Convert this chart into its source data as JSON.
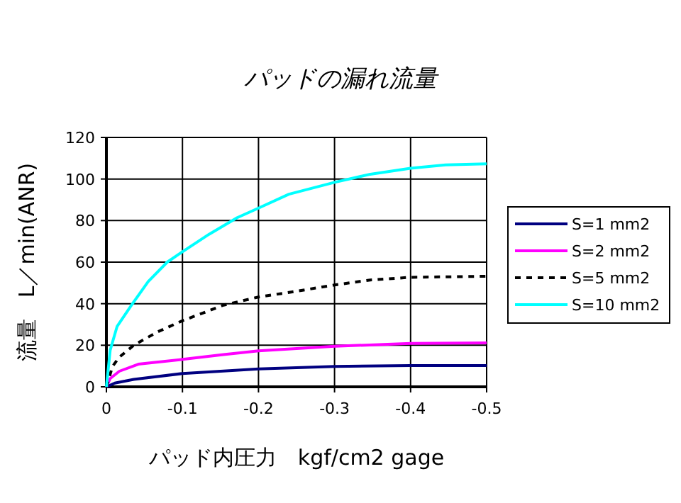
{
  "chart_data": {
    "type": "line",
    "title": "パッドの漏れ流量",
    "xlabel": "パッド内圧力　kgf/cm2 gage",
    "ylabel": "流量　L／min(ANR)",
    "xlim": [
      0,
      -0.5
    ],
    "xticks": [
      0,
      -0.1,
      -0.2,
      -0.3,
      -0.4,
      -0.5
    ],
    "ylim": [
      0,
      120
    ],
    "yticks": [
      0,
      20,
      40,
      60,
      80,
      100,
      120
    ],
    "grid": true,
    "legend": "right",
    "marker": "none",
    "series": [
      {
        "name": "S=1 mm2",
        "color": "#000080",
        "line_style": "solid",
        "x": [
          0,
          -0.011,
          -0.036,
          -0.1,
          -0.2,
          -0.3,
          -0.4,
          -0.5
        ],
        "values": [
          0,
          1.8,
          3.6,
          6.4,
          8.6,
          9.8,
          10.2,
          10.2
        ]
      },
      {
        "name": "S=2 mm2",
        "color": "#ff00ff",
        "line_style": "solid",
        "x": [
          0,
          -0.005,
          -0.017,
          -0.042,
          -0.1,
          -0.154,
          -0.2,
          -0.3,
          -0.4,
          -0.5
        ],
        "values": [
          0,
          4,
          7.5,
          10.9,
          13.2,
          15.5,
          17.3,
          19.5,
          20.9,
          21.1
        ]
      },
      {
        "name": "S=5 mm2",
        "color": "#000000",
        "line_style": "dashed",
        "x": [
          0,
          -0.008,
          -0.017,
          -0.036,
          -0.067,
          -0.1,
          -0.154,
          -0.2,
          -0.25,
          -0.3,
          -0.347,
          -0.4,
          -0.5
        ],
        "values": [
          0,
          9.8,
          14.3,
          20,
          26.4,
          31.8,
          39.3,
          43.2,
          46,
          49,
          51.4,
          52.7,
          53.2
        ]
      },
      {
        "name": "S=10 mm2",
        "color": "#00ffff",
        "line_style": "solid",
        "x": [
          0,
          -0.005,
          -0.014,
          -0.033,
          -0.055,
          -0.08,
          -0.1,
          -0.135,
          -0.172,
          -0.2,
          -0.24,
          -0.3,
          -0.347,
          -0.4,
          -0.446,
          -0.5
        ],
        "values": [
          0,
          17.7,
          29,
          39.3,
          50.7,
          60,
          65,
          73.4,
          81.4,
          86,
          92.7,
          98.4,
          102.3,
          105.2,
          106.8,
          107.3
        ]
      }
    ]
  }
}
